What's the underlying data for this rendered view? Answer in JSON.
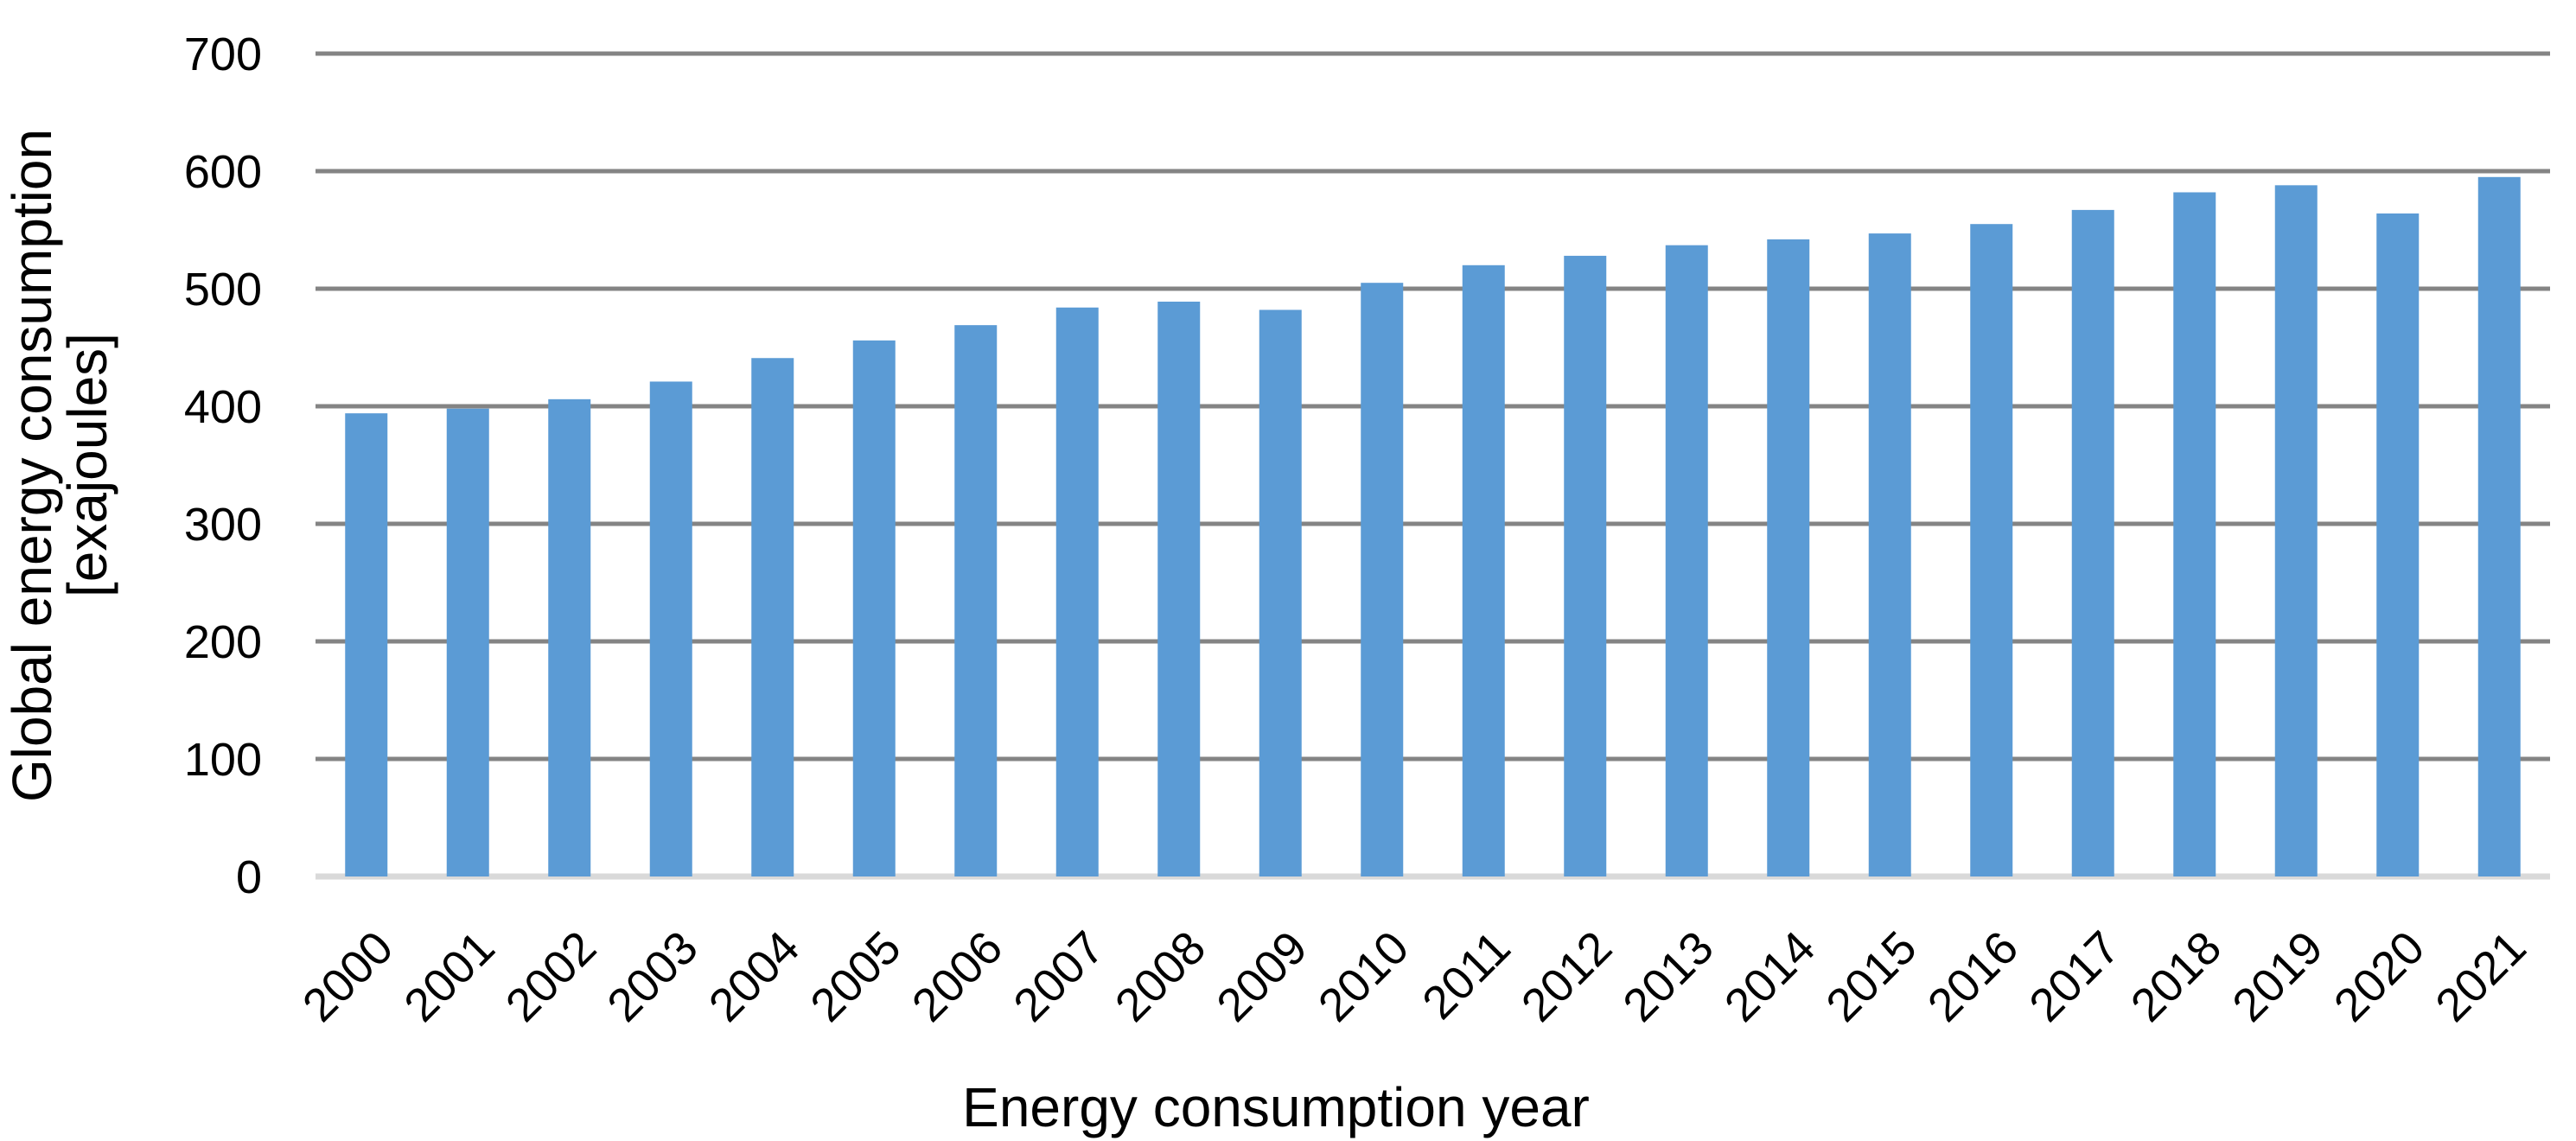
{
  "chart_data": {
    "type": "bar",
    "title": "",
    "xlabel": "Energy consumption year",
    "ylabel_line1": "Global energy consumption",
    "ylabel_line2": "[exajoules]",
    "unit": "exajoules",
    "categories": [
      "2000",
      "2001",
      "2002",
      "2003",
      "2004",
      "2005",
      "2006",
      "2007",
      "2008",
      "2009",
      "2010",
      "2011",
      "2012",
      "2013",
      "2014",
      "2015",
      "2016",
      "2017",
      "2018",
      "2019",
      "2020",
      "2021"
    ],
    "values": [
      394,
      398,
      406,
      421,
      441,
      456,
      469,
      484,
      489,
      482,
      505,
      520,
      528,
      537,
      542,
      547,
      555,
      567,
      582,
      588,
      564,
      595
    ],
    "yticks": [
      0,
      100,
      200,
      300,
      400,
      500,
      600,
      700
    ],
    "ylim": [
      0,
      700
    ],
    "grid": true,
    "legend": false,
    "colors": {
      "bar": "#5B9BD5",
      "gridline": "#848484",
      "baseline": "#D9D9D9",
      "text": "#000000",
      "background": "#FFFFFF"
    }
  }
}
